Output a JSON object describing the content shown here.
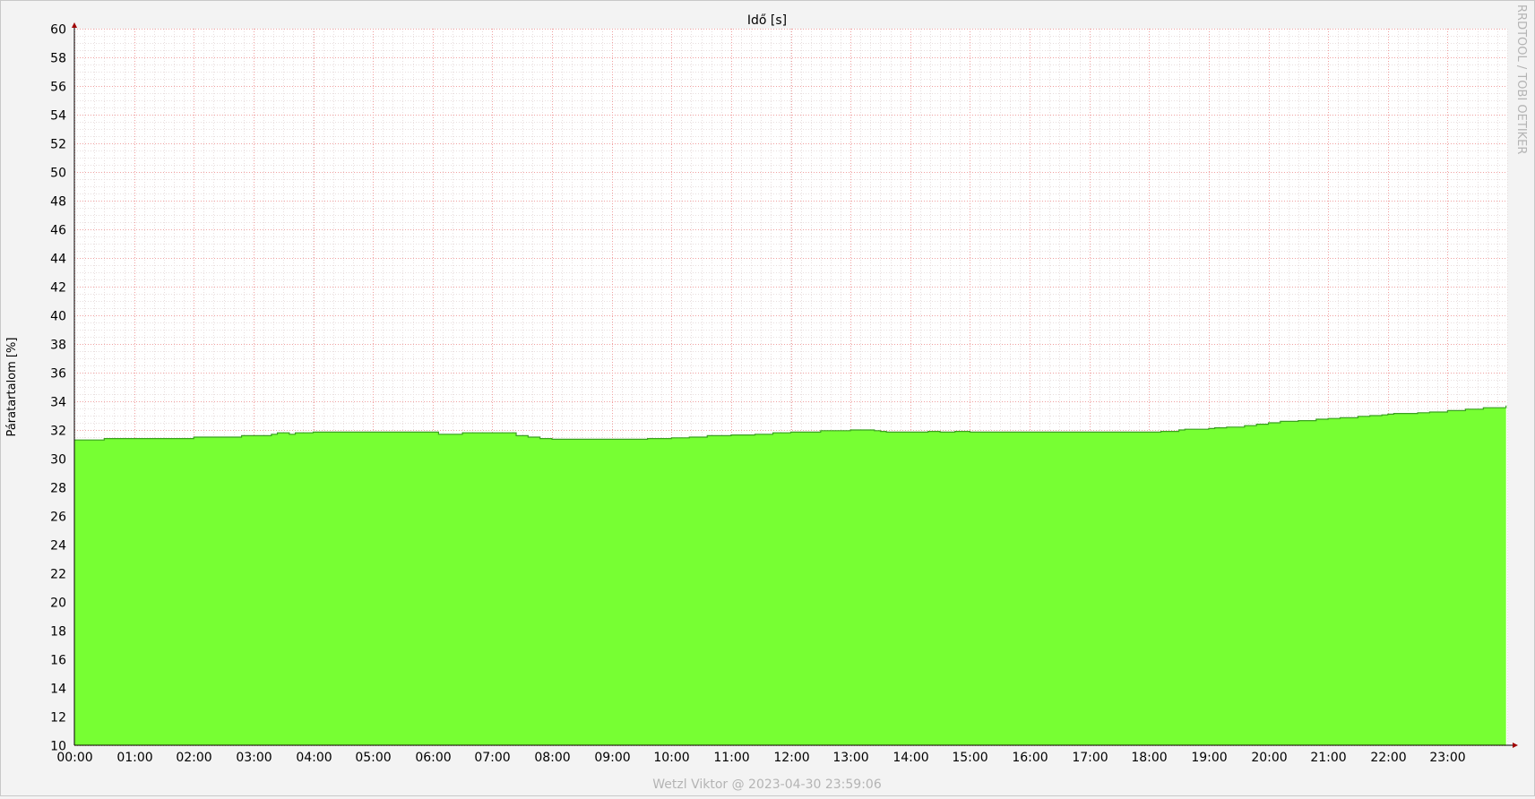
{
  "chart_data": {
    "type": "area",
    "title": "Idő [s]",
    "ylabel": "Páratartalom [%]",
    "xlabel": "",
    "ylim": [
      10,
      60
    ],
    "xlim_hours": [
      0,
      24
    ],
    "y_ticks": [
      "10",
      "12",
      "14",
      "16",
      "18",
      "20",
      "22",
      "24",
      "26",
      "28",
      "30",
      "32",
      "34",
      "36",
      "38",
      "40",
      "42",
      "44",
      "46",
      "48",
      "50",
      "52",
      "54",
      "56",
      "58",
      "60"
    ],
    "x_ticks": [
      "00:00",
      "01:00",
      "02:00",
      "03:00",
      "04:00",
      "05:00",
      "06:00",
      "07:00",
      "08:00",
      "09:00",
      "10:00",
      "11:00",
      "12:00",
      "13:00",
      "14:00",
      "15:00",
      "16:00",
      "17:00",
      "18:00",
      "19:00",
      "20:00",
      "21:00",
      "22:00",
      "23:00"
    ],
    "grid": true,
    "series": [
      {
        "color": "#77ff33",
        "line_color": "#3aa020",
        "x": [
          0.0,
          0.5,
          1.0,
          1.5,
          2.0,
          2.5,
          2.8,
          3.0,
          3.3,
          3.4,
          3.6,
          3.7,
          4.0,
          4.5,
          5.0,
          5.5,
          5.95,
          6.1,
          6.5,
          7.0,
          7.2,
          7.4,
          7.6,
          7.8,
          8.0,
          8.5,
          9.0,
          9.3,
          9.6,
          10.0,
          10.3,
          10.6,
          11.0,
          11.4,
          11.7,
          12.0,
          12.5,
          13.0,
          13.4,
          13.5,
          13.6,
          14.0,
          14.3,
          14.5,
          14.75,
          15.0,
          15.5,
          16.0,
          17.0,
          17.5,
          18.0,
          18.2,
          18.5,
          18.6,
          19.0,
          19.1,
          19.3,
          19.6,
          19.8,
          20.0,
          20.2,
          20.5,
          20.8,
          21.0,
          21.2,
          21.5,
          21.7,
          21.9,
          22.0,
          22.1,
          22.5,
          22.7,
          23.0,
          23.3,
          23.6,
          23.98
        ],
        "y": [
          31.3,
          31.4,
          31.4,
          31.4,
          31.5,
          31.5,
          31.6,
          31.6,
          31.7,
          31.8,
          31.7,
          31.8,
          31.85,
          31.85,
          31.85,
          31.85,
          31.85,
          31.7,
          31.8,
          31.8,
          31.8,
          31.6,
          31.5,
          31.4,
          31.35,
          31.35,
          31.35,
          31.35,
          31.4,
          31.45,
          31.5,
          31.6,
          31.65,
          31.7,
          31.8,
          31.85,
          31.95,
          32.0,
          31.95,
          31.9,
          31.85,
          31.85,
          31.9,
          31.85,
          31.9,
          31.85,
          31.85,
          31.85,
          31.85,
          31.85,
          31.85,
          31.9,
          32.0,
          32.05,
          32.1,
          32.15,
          32.2,
          32.3,
          32.4,
          32.5,
          32.6,
          32.65,
          32.75,
          32.8,
          32.85,
          32.95,
          33.0,
          33.05,
          33.1,
          33.15,
          33.2,
          33.25,
          33.35,
          33.45,
          33.55,
          33.7
        ]
      }
    ]
  },
  "watermark": "RRDTOOL / TOBI OETIKER",
  "footer": "Wetzl Viktor @ 2023-04-30 23:59:06"
}
